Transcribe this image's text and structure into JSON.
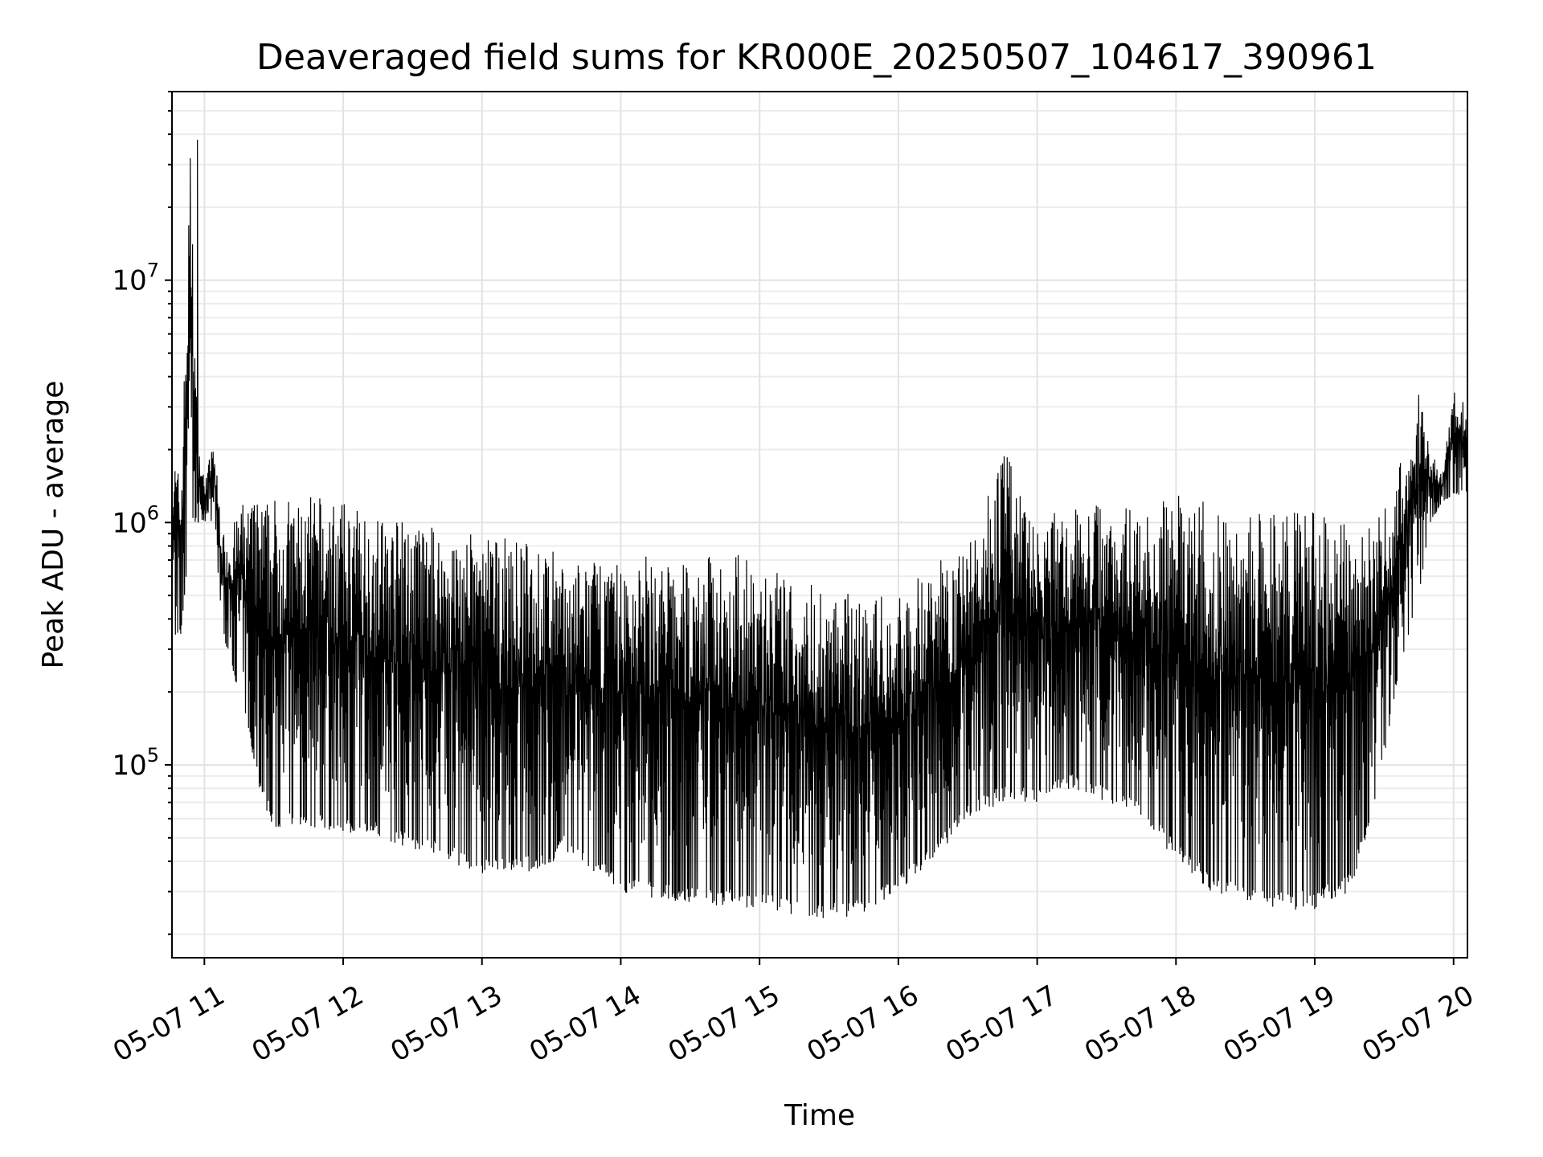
{
  "chart_data": {
    "type": "line",
    "title": "Deaveraged field sums for KR000E_20250507_104617_390961",
    "xlabel": "Time",
    "ylabel": "Peak ADU - average",
    "yscale": "log",
    "grid": true,
    "line_color": "#000000",
    "xlim": [
      "05-07 10:46",
      "05-07 20:06"
    ],
    "ylim": [
      16000,
      60000000
    ],
    "x_ticks": [
      "05-07 11",
      "05-07 12",
      "05-07 13",
      "05-07 14",
      "05-07 15",
      "05-07 16",
      "05-07 17",
      "05-07 18",
      "05-07 19",
      "05-07 20"
    ],
    "y_ticks": [
      {
        "value": 100000,
        "base": "10",
        "exp": "5"
      },
      {
        "value": 1000000,
        "base": "10",
        "exp": "6"
      },
      {
        "value": 10000000,
        "base": "10",
        "exp": "7"
      }
    ],
    "series": [
      {
        "x": [
          "05-07 10:46",
          "05-07 10:50",
          "05-07 10:54",
          "05-07 10:57",
          "05-07 11:00",
          "05-07 11:04",
          "05-07 11:08",
          "05-07 11:12",
          "05-07 11:16",
          "05-07 11:20",
          "05-07 11:25",
          "05-07 11:30",
          "05-07 11:40",
          "05-07 11:50",
          "05-07 12:00",
          "05-07 12:15",
          "05-07 12:30",
          "05-07 12:45",
          "05-07 13:00",
          "05-07 13:15",
          "05-07 13:30",
          "05-07 13:35",
          "05-07 13:45",
          "05-07 14:00",
          "05-07 14:15",
          "05-07 14:30",
          "05-07 14:45",
          "05-07 15:00",
          "05-07 15:15",
          "05-07 15:30",
          "05-07 15:45",
          "05-07 16:00",
          "05-07 16:15",
          "05-07 16:30",
          "05-07 16:45",
          "05-07 17:00",
          "05-07 17:15",
          "05-07 17:30",
          "05-07 17:45",
          "05-07 18:00",
          "05-07 18:15",
          "05-07 18:30",
          "05-07 18:45",
          "05-07 19:00",
          "05-07 19:15",
          "05-07 19:25",
          "05-07 19:35",
          "05-07 19:45",
          "05-07 19:50",
          "05-07 19:55",
          "05-07 20:00",
          "05-07 20:06"
        ],
        "low": [
          330000,
          340000,
          900000,
          1000000,
          1000000,
          1000000,
          350000,
          250000,
          180000,
          120000,
          70000,
          55000,
          55000,
          55000,
          52000,
          50000,
          45000,
          40000,
          35000,
          35000,
          38000,
          45000,
          38000,
          30000,
          28000,
          27000,
          26000,
          25000,
          24000,
          23000,
          24000,
          30000,
          40000,
          60000,
          70000,
          70000,
          80000,
          70000,
          60000,
          40000,
          30000,
          26000,
          25000,
          25000,
          30000,
          60000,
          200000,
          500000,
          1000000,
          1200000,
          1300000,
          1300000
        ],
        "high": [
          2100000,
          1500000,
          38000000,
          2300000,
          1500000,
          2200000,
          900000,
          950000,
          1200000,
          1250000,
          1250000,
          1300000,
          1250000,
          1300000,
          1200000,
          1100000,
          1000000,
          950000,
          900000,
          850000,
          800000,
          650000,
          700000,
          700000,
          750000,
          700000,
          800000,
          650000,
          600000,
          550000,
          500000,
          500000,
          700000,
          800000,
          2100000,
          1000000,
          1200000,
          1300000,
          1200000,
          1300000,
          1200000,
          1100000,
          1100000,
          1100000,
          1000000,
          1000000,
          1500000,
          3400000,
          2000000,
          1600000,
          3500000,
          3000000
        ]
      }
    ]
  }
}
